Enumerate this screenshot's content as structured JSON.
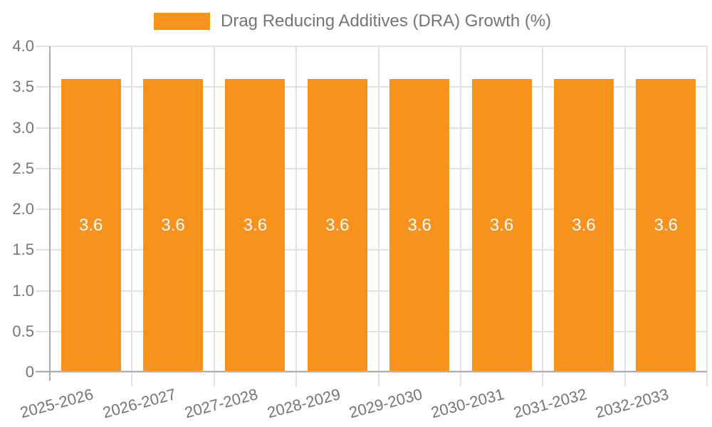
{
  "page": {
    "background": "#FFFFFF"
  },
  "chart_data": {
    "type": "bar",
    "title": "",
    "xlabel": "",
    "ylabel": "",
    "legend_position": "top",
    "categories": [
      "2025-2026",
      "2026-2027",
      "2027-2028",
      "2028-2029",
      "2029-2030",
      "2030-2031",
      "2031-2032",
      "2032-2033"
    ],
    "series": [
      {
        "name": "Drag Reducing Additives (DRA) Growth (%)",
        "values": [
          3.6,
          3.6,
          3.6,
          3.6,
          3.6,
          3.6,
          3.6,
          3.6
        ]
      }
    ],
    "bar_value_labels": [
      "3.6",
      "3.6",
      "3.6",
      "3.6",
      "3.6",
      "3.6",
      "3.6",
      "3.6"
    ],
    "ylim": [
      0,
      4.0
    ],
    "yticks": [
      {
        "value": 0,
        "label": "0"
      },
      {
        "value": 0.5,
        "label": "0.5"
      },
      {
        "value": 1,
        "label": "1.0"
      },
      {
        "value": 1.5,
        "label": "1.5"
      },
      {
        "value": 2,
        "label": "2.0"
      },
      {
        "value": 2.5,
        "label": "2.5"
      },
      {
        "value": 3,
        "label": "3.0"
      },
      {
        "value": 3.5,
        "label": "3.5"
      },
      {
        "value": 4,
        "label": "4.0"
      }
    ],
    "grid": true,
    "colors": {
      "bar": "#F6921E",
      "bar_label": "#FFFFFF",
      "axis_text": "#757575",
      "legend_text": "#757575",
      "gridline": "#E2E2E2",
      "axis_line": "#ABABAB",
      "baseline": "#B0B0B0"
    }
  }
}
